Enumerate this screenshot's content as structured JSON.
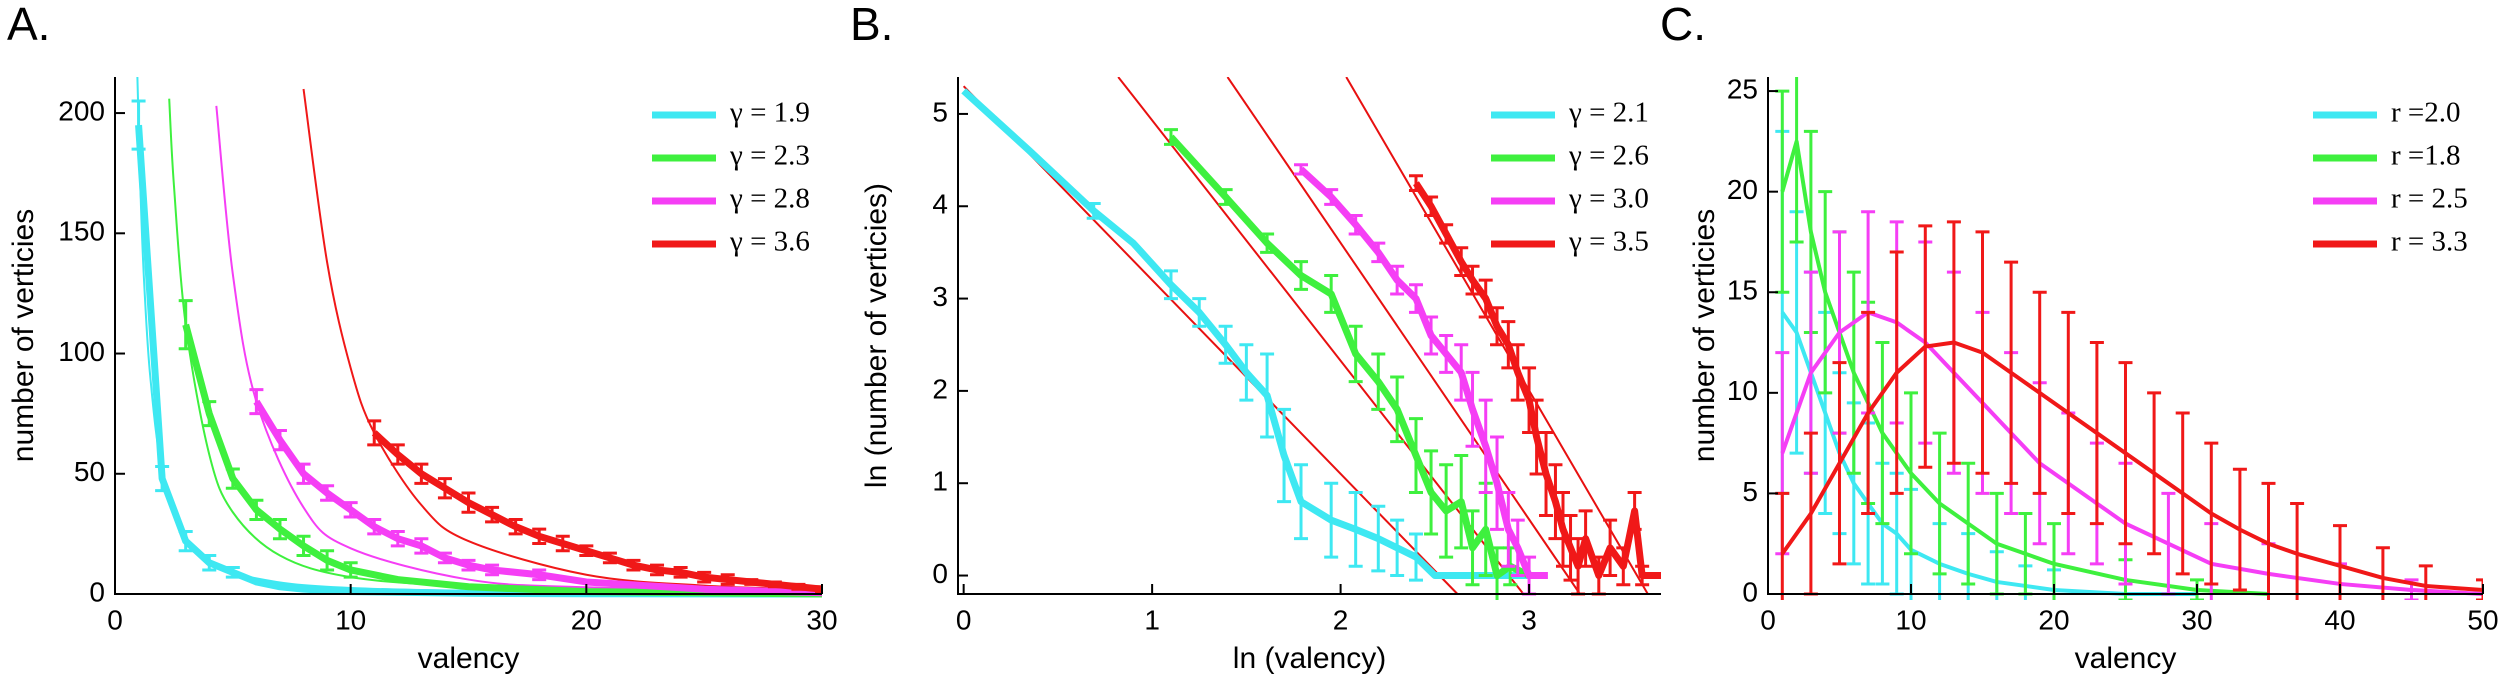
{
  "chart_data": [
    {
      "type": "line",
      "panel_label": "A.",
      "xlabel": "valency",
      "ylabel": "number of verticies",
      "xlim": [
        0,
        30
      ],
      "ylim": [
        0,
        215
      ],
      "xticks": [
        0,
        10,
        20,
        30
      ],
      "yticks": [
        0,
        50,
        100,
        150,
        200
      ],
      "legend": "upper right",
      "series": [
        {
          "name": "γ = 1.9",
          "color": "#3ee8f2",
          "x": [
            1,
            2,
            3,
            4,
            5,
            6,
            7,
            8,
            10,
            15,
            20,
            30
          ],
          "values": [
            195,
            48,
            22,
            13,
            9,
            5,
            3,
            2,
            1,
            0.3,
            0.1,
            0
          ],
          "errors": [
            10,
            5,
            4,
            3,
            2,
            null,
            null,
            null,
            null,
            null,
            null,
            null
          ]
        },
        {
          "name": "γ = 2.3",
          "color": "#3ef03e",
          "x": [
            3,
            4,
            5,
            6,
            7,
            8,
            9,
            10,
            12,
            15,
            20,
            30
          ],
          "values": [
            112,
            75,
            48,
            35,
            27,
            20,
            14,
            10,
            6,
            3,
            1,
            0
          ],
          "errors": [
            10,
            5,
            4,
            4,
            4,
            4,
            4,
            3,
            null,
            null,
            null,
            null
          ]
        },
        {
          "name": "γ = 2.8",
          "color": "#f53ef5",
          "x": [
            6,
            7,
            8,
            9,
            10,
            11,
            12,
            13,
            14,
            15,
            16,
            18,
            20,
            25,
            30
          ],
          "values": [
            80,
            64,
            50,
            42,
            35,
            28,
            23,
            20,
            15,
            12,
            10,
            8,
            5,
            2,
            0.5
          ],
          "errors": [
            5,
            4,
            4,
            3,
            3,
            3,
            3,
            3,
            2,
            2,
            2,
            2,
            null,
            null,
            null
          ]
        },
        {
          "name": "γ = 3.6",
          "color": "#f01818",
          "x": [
            11,
            12,
            13,
            14,
            15,
            16,
            17,
            18,
            19,
            20,
            21,
            22,
            23,
            24,
            25,
            26,
            27,
            28,
            29,
            30
          ],
          "values": [
            67,
            58,
            50,
            44,
            38,
            33,
            28,
            24,
            21,
            18,
            15,
            12,
            10,
            9,
            7,
            6,
            5,
            4,
            3,
            2
          ],
          "errors": [
            5,
            4,
            4,
            4,
            4,
            3,
            3,
            3,
            3,
            2,
            2,
            2,
            2,
            2,
            2,
            2,
            1,
            1,
            1,
            1
          ]
        }
      ],
      "fits": [
        {
          "color": "#3ee8f2",
          "x": [
            0.95,
            1.1,
            1.25,
            1.5,
            2,
            3,
            4,
            6,
            10,
            20,
            30
          ],
          "values": [
            215,
            162,
            127,
            90,
            52,
            24,
            14,
            6.5,
            2.5,
            0.6,
            0.3
          ]
        },
        {
          "color": "#3ef03e",
          "x": [
            2.3,
            2.5,
            3,
            4,
            5,
            7,
            10,
            15,
            20,
            30
          ],
          "values": [
            206,
            170,
            112,
            58,
            34,
            16,
            7,
            3,
            1.4,
            0.6
          ]
        },
        {
          "color": "#f53ef5",
          "x": [
            4.3,
            5,
            6,
            8,
            10,
            15,
            20,
            30
          ],
          "values": [
            203,
            133,
            80,
            36,
            19,
            6,
            2.8,
            1
          ]
        },
        {
          "color": "#f01818",
          "x": [
            8,
            9,
            10,
            11,
            13,
            15,
            20,
            25,
            30
          ],
          "values": [
            210,
            138,
            94,
            67,
            37,
            22,
            8,
            3.5,
            1.8
          ]
        }
      ]
    },
    {
      "type": "line",
      "panel_label": "B.",
      "xlabel": "ln (valency)",
      "ylabel": "ln (number of verticies)",
      "xlim": [
        -0.03,
        3.7
      ],
      "ylim": [
        -0.2,
        5.4
      ],
      "xticks": [
        0,
        1,
        2,
        3
      ],
      "yticks": [
        0,
        1,
        2,
        3,
        4,
        5
      ],
      "legend": "upper right",
      "series": [
        {
          "name": "γ = 2.1",
          "color": "#3ee8f2",
          "x": [
            0,
            0.35,
            0.69,
            0.9,
            1.1,
            1.25,
            1.39,
            1.5,
            1.61,
            1.7,
            1.79,
            1.95,
            2.08,
            2.2,
            2.3,
            2.4,
            2.5,
            3.0
          ],
          "values": [
            5.25,
            4.6,
            3.95,
            3.6,
            3.15,
            2.85,
            2.5,
            2.2,
            1.95,
            1.3,
            0.8,
            0.6,
            0.5,
            0.4,
            0.3,
            0.2,
            0,
            0
          ],
          "errors": [
            null,
            null,
            0.08,
            null,
            0.15,
            0.15,
            0.2,
            0.3,
            0.45,
            0.5,
            0.4,
            0.4,
            0.4,
            0.35,
            0.3,
            0.25,
            null,
            null
          ]
        },
        {
          "name": "γ = 2.6",
          "color": "#3ef03e",
          "x": [
            1.1,
            1.39,
            1.61,
            1.79,
            1.95,
            2.08,
            2.2,
            2.3,
            2.4,
            2.48,
            2.56,
            2.64,
            2.7,
            2.77,
            2.83,
            2.9,
            3.0
          ],
          "values": [
            4.75,
            4.1,
            3.6,
            3.25,
            3.05,
            2.4,
            2.1,
            1.8,
            1.3,
            0.9,
            0.7,
            0.8,
            0.3,
            0.5,
            0,
            0.1,
            0
          ],
          "errors": [
            0.08,
            0.08,
            0.1,
            0.15,
            0.2,
            0.3,
            0.3,
            0.35,
            0.4,
            0.45,
            0.5,
            0.5,
            0.4,
            0.5,
            0.3,
            0.2,
            null
          ]
        },
        {
          "name": "γ = 3.0",
          "color": "#f53ef5",
          "x": [
            1.79,
            1.95,
            2.08,
            2.2,
            2.3,
            2.4,
            2.48,
            2.56,
            2.64,
            2.7,
            2.77,
            2.83,
            2.89,
            2.94,
            3.0,
            3.1
          ],
          "values": [
            4.4,
            4.1,
            3.8,
            3.5,
            3.2,
            3.0,
            2.6,
            2.4,
            2.2,
            1.8,
            1.4,
            1.0,
            0.5,
            0.3,
            0,
            0
          ],
          "errors": [
            0.05,
            0.08,
            0.1,
            0.1,
            0.15,
            0.15,
            0.2,
            0.2,
            0.3,
            0.4,
            0.5,
            0.5,
            0.4,
            0.3,
            0.2,
            null
          ]
        },
        {
          "name": "γ = 3.5",
          "color": "#f01818",
          "x": [
            2.4,
            2.48,
            2.56,
            2.64,
            2.7,
            2.77,
            2.83,
            2.89,
            2.94,
            3.0,
            3.04,
            3.09,
            3.14,
            3.18,
            3.22,
            3.26,
            3.3,
            3.37,
            3.43,
            3.5,
            3.56,
            3.6,
            3.7
          ],
          "values": [
            4.25,
            4.0,
            3.7,
            3.4,
            3.2,
            3.0,
            2.7,
            2.5,
            2.2,
            1.9,
            1.5,
            1.1,
            0.8,
            0.5,
            0.3,
            0.1,
            0.4,
            0,
            0.3,
            0.1,
            0.7,
            0,
            0
          ],
          "errors": [
            0.08,
            0.1,
            0.1,
            0.15,
            0.15,
            0.2,
            0.2,
            0.25,
            0.3,
            0.35,
            0.4,
            0.45,
            0.4,
            0.4,
            0.35,
            0.3,
            0.3,
            0.2,
            0.3,
            0.2,
            0.2,
            0.1,
            null
          ]
        }
      ],
      "fits": [
        {
          "color": "#e81010",
          "x": [
            0,
            2.62
          ],
          "values": [
            5.3,
            -0.2
          ]
        },
        {
          "color": "#e81010",
          "x": [
            0.82,
            2.97
          ],
          "values": [
            5.4,
            -0.2
          ]
        },
        {
          "color": "#e81010",
          "x": [
            1.4,
            3.27
          ],
          "values": [
            5.4,
            -0.2
          ]
        },
        {
          "color": "#e81010",
          "x": [
            2.03,
            3.63
          ],
          "values": [
            5.4,
            -0.2
          ]
        }
      ]
    },
    {
      "type": "line",
      "panel_label": "C.",
      "xlabel": "valency",
      "ylabel": "number of verticies",
      "xlim": [
        0,
        50
      ],
      "ylim": [
        0,
        25.7
      ],
      "xticks": [
        0,
        10,
        20,
        30,
        40,
        50
      ],
      "yticks": [
        0,
        5,
        10,
        15,
        20,
        25
      ],
      "legend": "upper right",
      "series": [
        {
          "name": "r =2.0",
          "color": "#3ee8f2",
          "x": [
            1,
            2,
            3,
            4,
            5,
            6,
            7,
            8,
            9,
            10,
            12,
            14,
            16,
            18,
            20,
            25,
            30
          ],
          "values": [
            14,
            13,
            11,
            9,
            7,
            5.5,
            4.5,
            3.5,
            3,
            2.2,
            1.5,
            1,
            0.6,
            0.4,
            0.2,
            0,
            0
          ],
          "errors": [
            9,
            6,
            5,
            5,
            4,
            4,
            4,
            3,
            3,
            3,
            2,
            2,
            1.5,
            1,
            1,
            null,
            null
          ]
        },
        {
          "name": "r =1.8",
          "color": "#3ef03e",
          "x": [
            1,
            2,
            3,
            4,
            5,
            6,
            7,
            8,
            10,
            12,
            14,
            16,
            18,
            20,
            25,
            30,
            35
          ],
          "values": [
            20,
            22.5,
            18,
            15,
            13,
            11,
            9.5,
            8,
            6,
            4.5,
            3.5,
            2.5,
            2,
            1.5,
            0.7,
            0.2,
            0
          ],
          "errors": [
            5,
            5,
            5,
            5,
            5,
            5,
            5,
            4.5,
            4,
            3.5,
            3,
            2.5,
            2,
            2,
            1,
            0.5,
            null
          ]
        },
        {
          "name": "r = 2.5",
          "color": "#f53ef5",
          "x": [
            1,
            3,
            5,
            7,
            9,
            11,
            13,
            15,
            17,
            19,
            21,
            23,
            25,
            28,
            31,
            35,
            40,
            45,
            50
          ],
          "values": [
            7,
            11,
            13,
            14,
            13.5,
            12.5,
            11,
            9.5,
            8,
            6.5,
            5.5,
            4.5,
            3.5,
            2.5,
            1.5,
            1,
            0.5,
            0.2,
            0
          ],
          "errors": [
            5,
            5,
            5,
            5,
            5,
            5,
            5,
            4.5,
            4,
            4,
            3.5,
            3,
            3,
            2.5,
            2,
            1.5,
            1,
            0.5,
            null
          ]
        },
        {
          "name": "r = 3.3",
          "color": "#f01818",
          "x": [
            1,
            3,
            5,
            7,
            9,
            11,
            13,
            15,
            17,
            19,
            21,
            23,
            25,
            27,
            29,
            31,
            33,
            35,
            37,
            40,
            43,
            46,
            50
          ],
          "values": [
            2,
            4,
            6.5,
            9,
            11,
            12.3,
            12.5,
            12,
            11,
            10,
            9,
            8,
            7,
            6,
            5,
            4,
            3.2,
            2.5,
            2,
            1.4,
            0.8,
            0.4,
            0.2
          ],
          "errors": [
            3,
            4,
            5,
            5,
            6,
            6,
            6,
            6,
            5.5,
            5,
            5,
            4.5,
            4.5,
            4,
            4,
            3.5,
            3,
            3,
            2.5,
            2,
            1.5,
            1,
            0.5
          ]
        }
      ]
    }
  ]
}
